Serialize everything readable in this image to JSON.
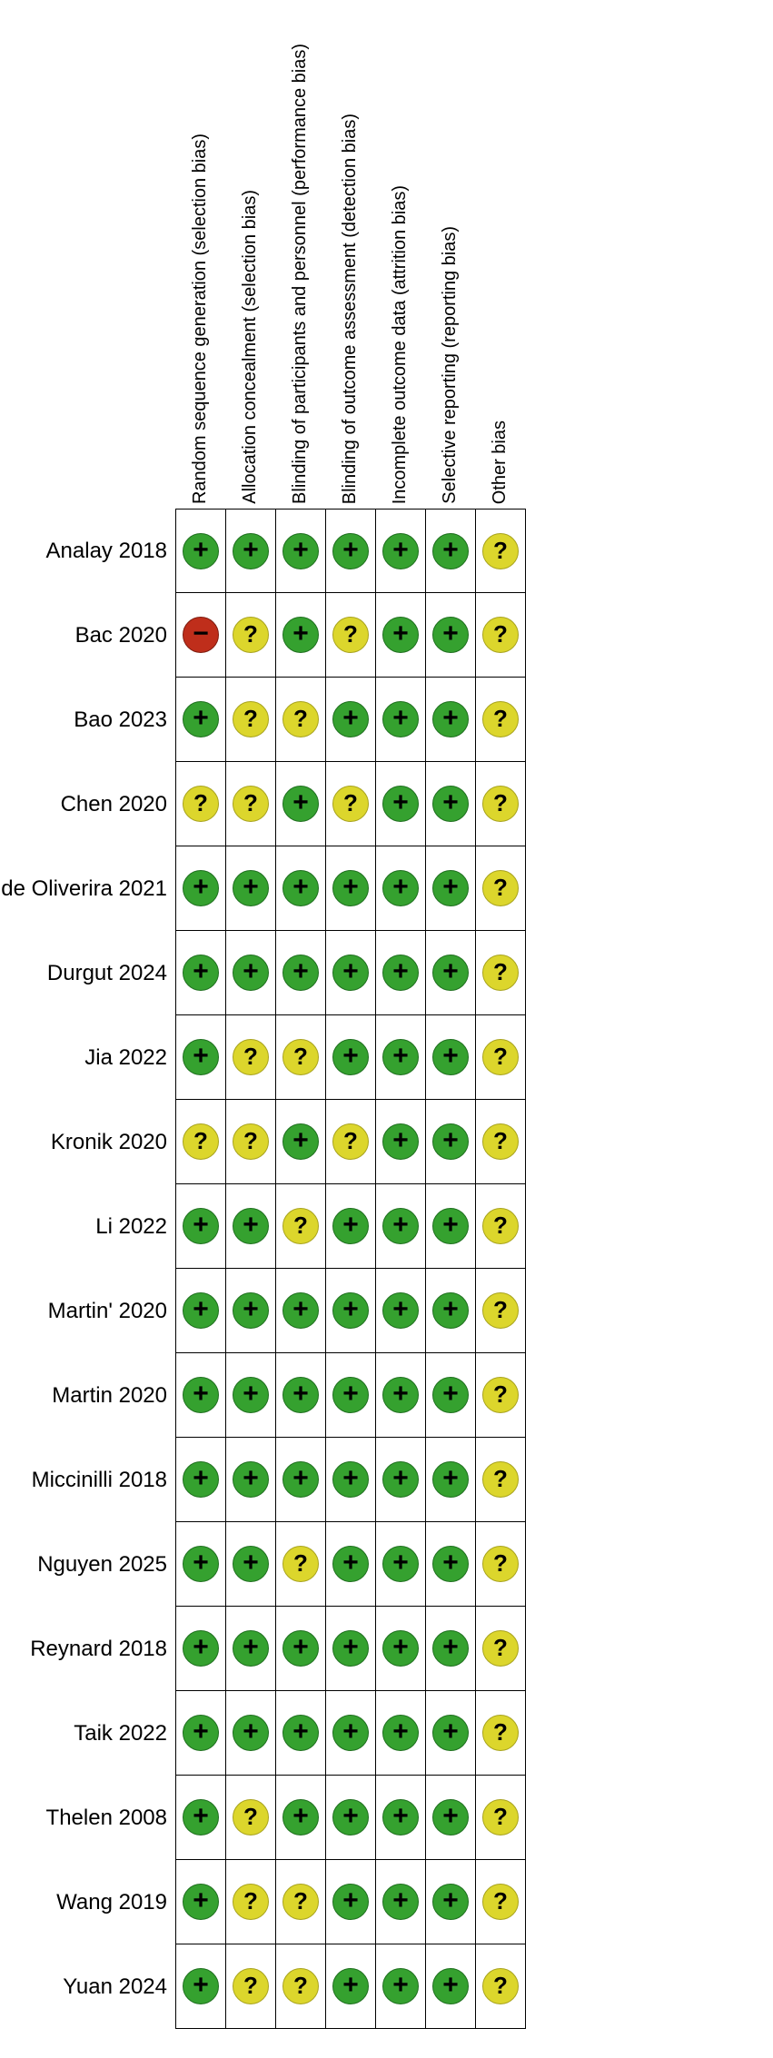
{
  "legend": {
    "low": {
      "symbol": "+",
      "color": "#35a12f",
      "border": "#1e6f1e"
    },
    "unclear": {
      "symbol": "?",
      "color": "#dcd62c",
      "border": "#a8a31d"
    },
    "high": {
      "symbol": "−",
      "color": "#bf2e1b",
      "border": "#7e1b0e"
    }
  },
  "chart_data": {
    "type": "heatmap",
    "title": "",
    "columns": [
      "Random sequence generation (selection bias)",
      "Allocation concealment (selection bias)",
      "Blinding of participants and personnel (performance bias)",
      "Blinding of outcome assessment (detection bias)",
      "Incomplete outcome data (attrition bias)",
      "Selective reporting (reporting bias)",
      "Other bias"
    ],
    "rows": [
      {
        "study": "Analay 2018",
        "judgments": [
          "+",
          "+",
          "+",
          "+",
          "+",
          "+",
          "?"
        ]
      },
      {
        "study": "Bac 2020",
        "judgments": [
          "-",
          "?",
          "+",
          "?",
          "+",
          "+",
          "?"
        ]
      },
      {
        "study": "Bao 2023",
        "judgments": [
          "+",
          "?",
          "?",
          "+",
          "+",
          "+",
          "?"
        ]
      },
      {
        "study": "Chen 2020",
        "judgments": [
          "?",
          "?",
          "+",
          "?",
          "+",
          "+",
          "?"
        ]
      },
      {
        "study": "de Oliverira 2021",
        "judgments": [
          "+",
          "+",
          "+",
          "+",
          "+",
          "+",
          "?"
        ]
      },
      {
        "study": "Durgut 2024",
        "judgments": [
          "+",
          "+",
          "+",
          "+",
          "+",
          "+",
          "?"
        ]
      },
      {
        "study": "Jia 2022",
        "judgments": [
          "+",
          "?",
          "?",
          "+",
          "+",
          "+",
          "?"
        ]
      },
      {
        "study": "Kronik 2020",
        "judgments": [
          "?",
          "?",
          "+",
          "?",
          "+",
          "+",
          "?"
        ]
      },
      {
        "study": "Li 2022",
        "judgments": [
          "+",
          "+",
          "?",
          "+",
          "+",
          "+",
          "?"
        ]
      },
      {
        "study": "Martin' 2020",
        "judgments": [
          "+",
          "+",
          "+",
          "+",
          "+",
          "+",
          "?"
        ]
      },
      {
        "study": "Martin 2020",
        "judgments": [
          "+",
          "+",
          "+",
          "+",
          "+",
          "+",
          "?"
        ]
      },
      {
        "study": "Miccinilli 2018",
        "judgments": [
          "+",
          "+",
          "+",
          "+",
          "+",
          "+",
          "?"
        ]
      },
      {
        "study": "Nguyen 2025",
        "judgments": [
          "+",
          "+",
          "?",
          "+",
          "+",
          "+",
          "?"
        ]
      },
      {
        "study": "Reynard 2018",
        "judgments": [
          "+",
          "+",
          "+",
          "+",
          "+",
          "+",
          "?"
        ]
      },
      {
        "study": "Taik 2022",
        "judgments": [
          "+",
          "+",
          "+",
          "+",
          "+",
          "+",
          "?"
        ]
      },
      {
        "study": "Thelen 2008",
        "judgments": [
          "+",
          "?",
          "+",
          "+",
          "+",
          "+",
          "?"
        ]
      },
      {
        "study": "Wang 2019",
        "judgments": [
          "+",
          "?",
          "?",
          "+",
          "+",
          "+",
          "?"
        ]
      },
      {
        "study": "Yuan 2024",
        "judgments": [
          "+",
          "?",
          "?",
          "+",
          "+",
          "+",
          "?"
        ]
      }
    ]
  }
}
